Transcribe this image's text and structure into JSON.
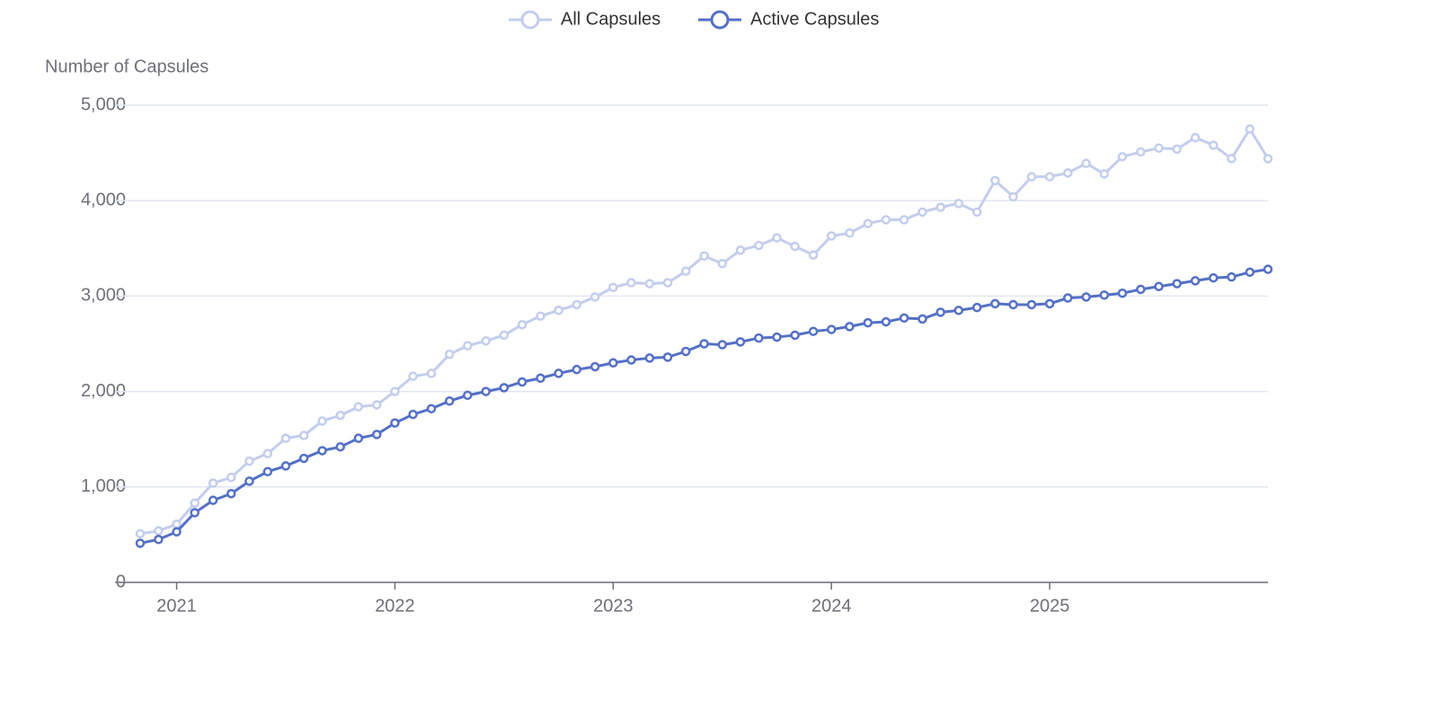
{
  "chart_data": {
    "type": "line",
    "y_axis_label": "Number of Capsules",
    "x": [
      2020.833,
      2020.917,
      2021.0,
      2021.083,
      2021.167,
      2021.25,
      2021.333,
      2021.417,
      2021.5,
      2021.583,
      2021.667,
      2021.75,
      2021.833,
      2021.917,
      2022.0,
      2022.083,
      2022.167,
      2022.25,
      2022.333,
      2022.417,
      2022.5,
      2022.583,
      2022.667,
      2022.75,
      2022.833,
      2022.917,
      2023.0,
      2023.083,
      2023.167,
      2023.25,
      2023.333,
      2023.417,
      2023.5,
      2023.583,
      2023.667,
      2023.75,
      2023.833,
      2023.917,
      2024.0,
      2024.083,
      2024.167,
      2024.25,
      2024.333,
      2024.417,
      2024.5,
      2024.583,
      2024.667,
      2024.75,
      2024.833,
      2024.917,
      2025.0,
      2025.083,
      2025.167,
      2025.25,
      2025.333,
      2025.417,
      2025.5,
      2025.583,
      2025.667,
      2025.75,
      2025.833,
      2025.917,
      2026.0
    ],
    "series": [
      {
        "name": "All Capsules",
        "color": "#c3cded",
        "values": [
          510,
          540,
          610,
          830,
          1040,
          1100,
          1270,
          1350,
          1510,
          1540,
          1690,
          1750,
          1840,
          1860,
          2000,
          2160,
          2190,
          2390,
          2480,
          2530,
          2590,
          2700,
          2790,
          2850,
          2910,
          2990,
          3090,
          3140,
          3130,
          3140,
          3260,
          3420,
          3340,
          3480,
          3530,
          3610,
          3520,
          3430,
          3630,
          3660,
          3760,
          3800,
          3800,
          3880,
          3930,
          3970,
          3880,
          4210,
          4040,
          4250,
          4250,
          4290,
          4390,
          4280,
          4460,
          4510,
          4550,
          4540,
          4660,
          4580,
          4440,
          4750,
          4440
        ]
      },
      {
        "name": "Active Capsules",
        "color": "#5470c6",
        "values": [
          410,
          450,
          530,
          730,
          860,
          930,
          1060,
          1160,
          1220,
          1300,
          1380,
          1420,
          1510,
          1550,
          1670,
          1760,
          1820,
          1900,
          1960,
          2000,
          2040,
          2100,
          2140,
          2190,
          2230,
          2260,
          2300,
          2330,
          2350,
          2360,
          2420,
          2500,
          2490,
          2520,
          2560,
          2570,
          2590,
          2630,
          2650,
          2680,
          2720,
          2730,
          2770,
          2760,
          2830,
          2850,
          2880,
          2920,
          2910,
          2910,
          2920,
          2980,
          2990,
          3010,
          3030,
          3070,
          3100,
          3130,
          3160,
          3190,
          3200,
          3250,
          3280
        ]
      }
    ],
    "xlim": [
      2020.833,
      2026.0
    ],
    "xticks": [
      2021,
      2022,
      2023,
      2024,
      2025
    ],
    "ylim": [
      0,
      5000
    ],
    "yticks": [
      0,
      {
        "value": 1000,
        "label": "1,000"
      },
      {
        "value": 2000,
        "label": "2,000"
      },
      {
        "value": 3000,
        "label": "3,000"
      },
      {
        "value": 4000,
        "label": "4,000"
      },
      {
        "value": 5000,
        "label": "5,000"
      }
    ],
    "grid": true,
    "legend": "top"
  }
}
